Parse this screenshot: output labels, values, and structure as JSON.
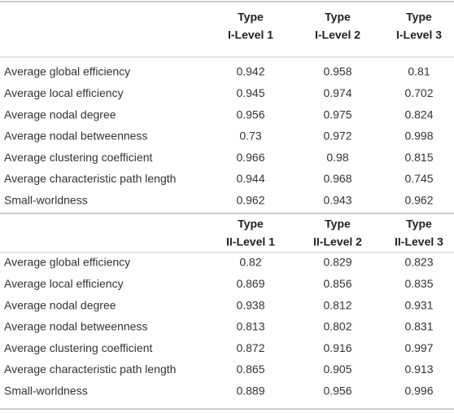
{
  "table": {
    "sections": [
      {
        "header": [
          [
            "Type",
            "I-Level 1"
          ],
          [
            "Type",
            "I-Level 2"
          ],
          [
            "Type",
            "I-Level 3"
          ]
        ],
        "rows": [
          {
            "label": "Average global efficiency",
            "values": [
              0.942,
              0.958,
              0.81
            ]
          },
          {
            "label": "Average local efficiency",
            "values": [
              0.945,
              0.974,
              0.702
            ]
          },
          {
            "label": "Average nodal degree",
            "values": [
              0.956,
              0.975,
              0.824
            ]
          },
          {
            "label": "Average nodal betweenness",
            "values": [
              0.73,
              0.972,
              0.998
            ]
          },
          {
            "label": "Average clustering coefficient",
            "values": [
              0.966,
              0.98,
              0.815
            ]
          },
          {
            "label": "Average characteristic path length",
            "values": [
              0.944,
              0.968,
              0.745
            ]
          },
          {
            "label": "Small-worldness",
            "values": [
              0.962,
              0.943,
              0.962
            ]
          }
        ]
      },
      {
        "header": [
          [
            "Type",
            "II-Level 1"
          ],
          [
            "Type",
            "II-Level 2"
          ],
          [
            "Type",
            "II-Level 3"
          ]
        ],
        "rows": [
          {
            "label": "Average global efficiency",
            "values": [
              0.82,
              0.829,
              0.823
            ]
          },
          {
            "label": "Average local efficiency",
            "values": [
              0.869,
              0.856,
              0.835
            ]
          },
          {
            "label": "Average nodal degree",
            "values": [
              0.938,
              0.812,
              0.931
            ]
          },
          {
            "label": "Average nodal betweenness",
            "values": [
              0.813,
              0.802,
              0.831
            ]
          },
          {
            "label": "Average clustering coefficient",
            "values": [
              0.872,
              0.916,
              0.997
            ]
          },
          {
            "label": "Average characteristic path length",
            "values": [
              0.865,
              0.905,
              0.913
            ]
          },
          {
            "label": "Small-worldness",
            "values": [
              0.889,
              0.956,
              0.996
            ]
          }
        ]
      }
    ]
  }
}
